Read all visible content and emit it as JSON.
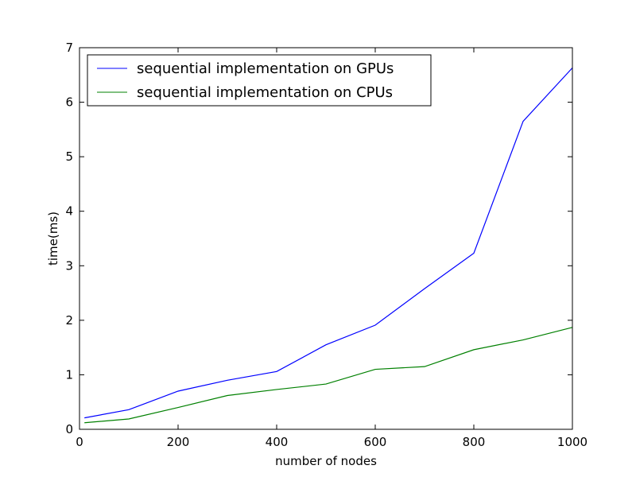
{
  "chart_data": {
    "type": "line",
    "xlabel": "number of nodes",
    "ylabel": "time(ms)",
    "xlim": [
      0,
      1000
    ],
    "ylim": [
      0,
      7
    ],
    "xticks": [
      0,
      200,
      400,
      600,
      800,
      1000
    ],
    "yticks": [
      0,
      1,
      2,
      3,
      4,
      5,
      6,
      7
    ],
    "grid": false,
    "legend_position": "top-left",
    "series": [
      {
        "name": "sequential implementation on GPUs",
        "color": "#0000ff",
        "x": [
          10,
          100,
          200,
          300,
          400,
          500,
          600,
          700,
          800,
          900,
          1000
        ],
        "y": [
          0.21,
          0.36,
          0.7,
          0.9,
          1.06,
          1.55,
          1.91,
          2.58,
          3.23,
          5.65,
          6.63
        ]
      },
      {
        "name": "sequential implementation on CPUs",
        "color": "#008000",
        "x": [
          10,
          100,
          200,
          300,
          400,
          500,
          600,
          700,
          800,
          900,
          1000
        ],
        "y": [
          0.12,
          0.19,
          0.4,
          0.62,
          0.73,
          0.83,
          1.1,
          1.15,
          1.46,
          1.64,
          1.87
        ]
      }
    ]
  }
}
